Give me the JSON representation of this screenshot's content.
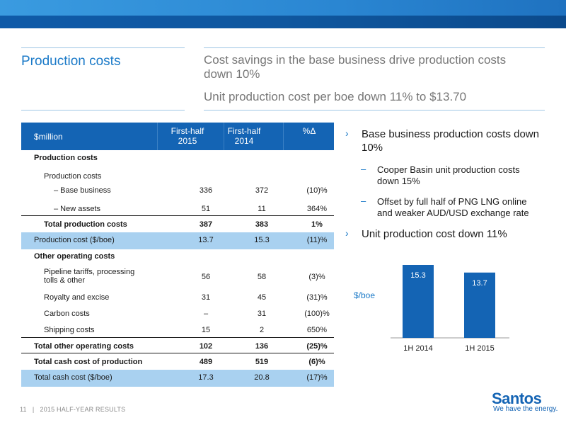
{
  "header": {
    "title": "Production costs",
    "subtitle_line1": "Cost savings in the base business drive production costs",
    "subtitle_line2": "down 10%",
    "subtitle_line3": "Unit production cost per boe down 11% to $13.70"
  },
  "table": {
    "columns": [
      "$million",
      "First-half 2015",
      "First-half 2014",
      "%Δ"
    ],
    "col_h1_line1": "First-half",
    "col_h1_line2": "2015",
    "col_h2_line1": "First-half",
    "col_h2_line2": "2014",
    "rows": [
      {
        "label": "Production costs",
        "v1": "",
        "v2": "",
        "v3": ""
      },
      {
        "label": "Production costs",
        "v1": "",
        "v2": "",
        "v3": ""
      },
      {
        "label": "– Base business",
        "v1": "336",
        "v2": "372",
        "v3": "(10)%"
      },
      {
        "label": "– New assets",
        "v1": "51",
        "v2": "11",
        "v3": "364%"
      },
      {
        "label": "Total production costs",
        "v1": "387",
        "v2": "383",
        "v3": "1%"
      },
      {
        "label": "Production cost ($/boe)",
        "v1": "13.7",
        "v2": "15.3",
        "v3": "(11)%"
      },
      {
        "label": "Other operating costs",
        "v1": "",
        "v2": "",
        "v3": ""
      },
      {
        "label": "Pipeline tariffs, processing tolls & other",
        "label_l1": "Pipeline tariffs, processing",
        "label_l2": "tolls & other",
        "v1": "56",
        "v2": "58",
        "v3": "(3)%"
      },
      {
        "label": "Royalty and excise",
        "v1": "31",
        "v2": "45",
        "v3": "(31)%"
      },
      {
        "label": "Carbon costs",
        "v1": "–",
        "v2": "31",
        "v3": "(100)%"
      },
      {
        "label": "Shipping costs",
        "v1": "15",
        "v2": "2",
        "v3": "650%"
      },
      {
        "label": "Total other operating costs",
        "v1": "102",
        "v2": "136",
        "v3": "(25)%"
      },
      {
        "label": "Total cash cost of production",
        "v1": "489",
        "v2": "519",
        "v3": "(6)%"
      },
      {
        "label": "Total cash cost ($/boe)",
        "v1": "17.3",
        "v2": "20.8",
        "v3": "(17)%"
      }
    ]
  },
  "bullets": {
    "b1_l1": "Base business production costs down",
    "b1_l2": "10%",
    "s1_l1": "Cooper Basin unit production costs",
    "s1_l2": "down 15%",
    "s2_l1": "Offset by full half of PNG LNG online",
    "s2_l2": "and weaker AUD/USD exchange rate",
    "b2": "Unit production cost down 11%"
  },
  "chart_data": {
    "type": "bar",
    "categories": [
      "1H 2014",
      "1H 2015"
    ],
    "values": [
      15.3,
      13.7
    ],
    "data_labels": [
      "15.3",
      "13.7"
    ],
    "ylabel": "$/boe",
    "bar_color": "#1464b4"
  },
  "footer": {
    "page_number": "11",
    "separator": "|",
    "label": "2015 HALF-YEAR RESULTS"
  },
  "brand": {
    "logo_text": "Santos",
    "tagline": "We have the energy."
  }
}
